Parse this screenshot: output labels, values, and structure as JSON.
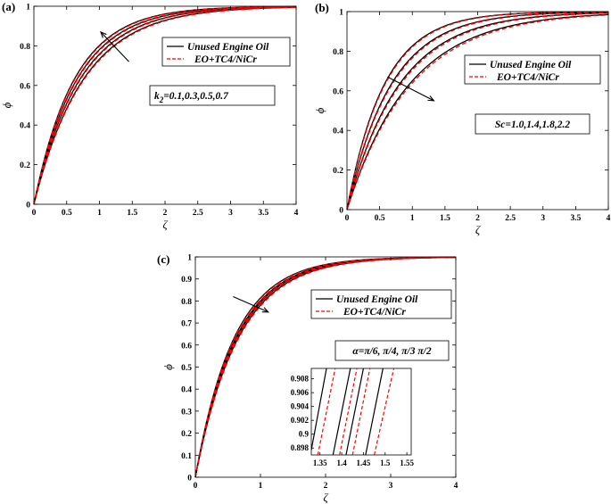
{
  "chart_data": [
    {
      "id": "a",
      "type": "line",
      "panel_label": "(a)",
      "xlabel": "ζ",
      "ylabel": "ϕ",
      "xlim": [
        0,
        4
      ],
      "ylim": [
        0,
        1
      ],
      "xticks": [
        "0",
        "0.5",
        "1",
        "1.5",
        "2",
        "2.5",
        "3",
        "3.5",
        "4"
      ],
      "yticks": [
        "0",
        "0.2",
        "0.4",
        "0.6",
        "0.8",
        "1"
      ],
      "legend": {
        "position": "top-right",
        "entries": [
          "Unused Engine Oil",
          "EO+TC4/NiCr"
        ]
      },
      "annotation": "k2=0.1,0.3,0.5,0.7",
      "annotation_sub": "2",
      "annotation_pre": "k",
      "annotation_post": "=0.1,0.3,0.5,0.7",
      "arrow": {
        "from": [
          1.45,
          0.72
        ],
        "to": [
          1.02,
          0.87
        ]
      },
      "series": [
        {
          "name": "Unused Engine Oil",
          "param": 0.1,
          "k": 1.32
        },
        {
          "name": "Unused Engine Oil",
          "param": 0.3,
          "k": 1.42
        },
        {
          "name": "Unused Engine Oil",
          "param": 0.5,
          "k": 1.52
        },
        {
          "name": "Unused Engine Oil",
          "param": 0.7,
          "k": 1.62
        },
        {
          "name": "EO+TC4/NiCr",
          "param": 0.1,
          "k": 1.3
        },
        {
          "name": "EO+TC4/NiCr",
          "param": 0.3,
          "k": 1.4
        },
        {
          "name": "EO+TC4/NiCr",
          "param": 0.5,
          "k": 1.5
        },
        {
          "name": "EO+TC4/NiCr",
          "param": 0.7,
          "k": 1.6
        }
      ]
    },
    {
      "id": "b",
      "type": "line",
      "panel_label": "(b)",
      "xlabel": "ζ",
      "ylabel": "ϕ",
      "xlim": [
        0,
        4
      ],
      "ylim": [
        0,
        1
      ],
      "xticks": [
        "0",
        "0.5",
        "1",
        "1.5",
        "2",
        "2.5",
        "3",
        "3.5",
        "4"
      ],
      "yticks": [
        "0",
        "0.2",
        "0.4",
        "0.6",
        "0.8",
        "1"
      ],
      "legend": {
        "position": "top-right",
        "entries": [
          "Unused Engine Oil",
          "EO+TC4/NiCr"
        ]
      },
      "annotation": "Sc=1.0,1.4,1.8,2.2",
      "arrow": {
        "from": [
          0.62,
          0.67
        ],
        "to": [
          1.33,
          0.55
        ]
      },
      "series": [
        {
          "name": "Unused Engine Oil",
          "param": 1.0,
          "k": 1.75
        },
        {
          "name": "Unused Engine Oil",
          "param": 1.4,
          "k": 1.48
        },
        {
          "name": "Unused Engine Oil",
          "param": 1.8,
          "k": 1.25
        },
        {
          "name": "Unused Engine Oil",
          "param": 2.2,
          "k": 1.05
        },
        {
          "name": "EO+TC4/NiCr",
          "param": 1.0,
          "k": 1.72
        },
        {
          "name": "EO+TC4/NiCr",
          "param": 1.4,
          "k": 1.45
        },
        {
          "name": "EO+TC4/NiCr",
          "param": 1.8,
          "k": 1.22
        },
        {
          "name": "EO+TC4/NiCr",
          "param": 2.2,
          "k": 1.02
        }
      ]
    },
    {
      "id": "c",
      "type": "line",
      "panel_label": "(c)",
      "xlabel": "ζ",
      "ylabel": "ϕ",
      "xlim": [
        0,
        4
      ],
      "ylim": [
        0,
        1
      ],
      "xticks": [
        "0",
        "1",
        "2",
        "3",
        "4"
      ],
      "yticks": [
        "0",
        "0.1",
        "0.2",
        "0.3",
        "0.4",
        "0.5",
        "0.6",
        "0.7",
        "0.8",
        "0.9",
        "1"
      ],
      "legend": {
        "position": "top-right",
        "entries": [
          "Unused Engine Oil",
          "EO+TC4/NiCr"
        ]
      },
      "annotation": "α=π/6,π/4,π/3,π/2",
      "annotation_display": "α=π/6, π/4, π/3 π/2",
      "arrow": {
        "from": [
          0.58,
          0.82
        ],
        "to": [
          1.12,
          0.75
        ]
      },
      "series": [
        {
          "name": "Unused Engine Oil",
          "param": "π/6",
          "k": 1.68
        },
        {
          "name": "Unused Engine Oil",
          "param": "π/4",
          "k": 1.61
        },
        {
          "name": "Unused Engine Oil",
          "param": "π/3",
          "k": 1.57
        },
        {
          "name": "Unused Engine Oil",
          "param": "π/2",
          "k": 1.52
        },
        {
          "name": "EO+TC4/NiCr",
          "param": "π/6",
          "k": 1.66
        },
        {
          "name": "EO+TC4/NiCr",
          "param": "π/4",
          "k": 1.59
        },
        {
          "name": "EO+TC4/NiCr",
          "param": "π/3",
          "k": 1.55
        },
        {
          "name": "EO+TC4/NiCr",
          "param": "π/2",
          "k": 1.5
        }
      ],
      "inset": {
        "xlim": [
          1.33,
          1.56
        ],
        "ylim": [
          0.897,
          0.9095
        ],
        "xticks": [
          "1.35",
          "1.4",
          "1.45",
          "1.5",
          "1.55"
        ],
        "yticks": [
          "0.898",
          "0.9",
          "0.902",
          "0.904",
          "0.906",
          "0.908"
        ],
        "lines": [
          {
            "style": "solid",
            "y0": 0.8977,
            "x0": 1.33,
            "y1": 0.9095,
            "x1": 1.365
          },
          {
            "style": "dash",
            "y0": 0.897,
            "x0": 1.345,
            "y1": 0.9095,
            "x1": 1.385
          },
          {
            "style": "solid",
            "y0": 0.897,
            "x0": 1.38,
            "y1": 0.9095,
            "x1": 1.42
          },
          {
            "style": "dash",
            "y0": 0.897,
            "x0": 1.395,
            "y1": 0.9095,
            "x1": 1.435
          },
          {
            "style": "solid",
            "y0": 0.897,
            "x0": 1.41,
            "y1": 0.9095,
            "x1": 1.45
          },
          {
            "style": "dash",
            "y0": 0.897,
            "x0": 1.425,
            "y1": 0.9095,
            "x1": 1.465
          },
          {
            "style": "solid",
            "y0": 0.897,
            "x0": 1.455,
            "y1": 0.9095,
            "x1": 1.495
          },
          {
            "style": "dash",
            "y0": 0.897,
            "x0": 1.475,
            "y1": 0.9095,
            "x1": 1.52
          }
        ]
      }
    }
  ],
  "colors": {
    "line_solid": "#000000",
    "line_dashed": "#ff0000",
    "axes": "#000000",
    "background": "#ffffff"
  }
}
